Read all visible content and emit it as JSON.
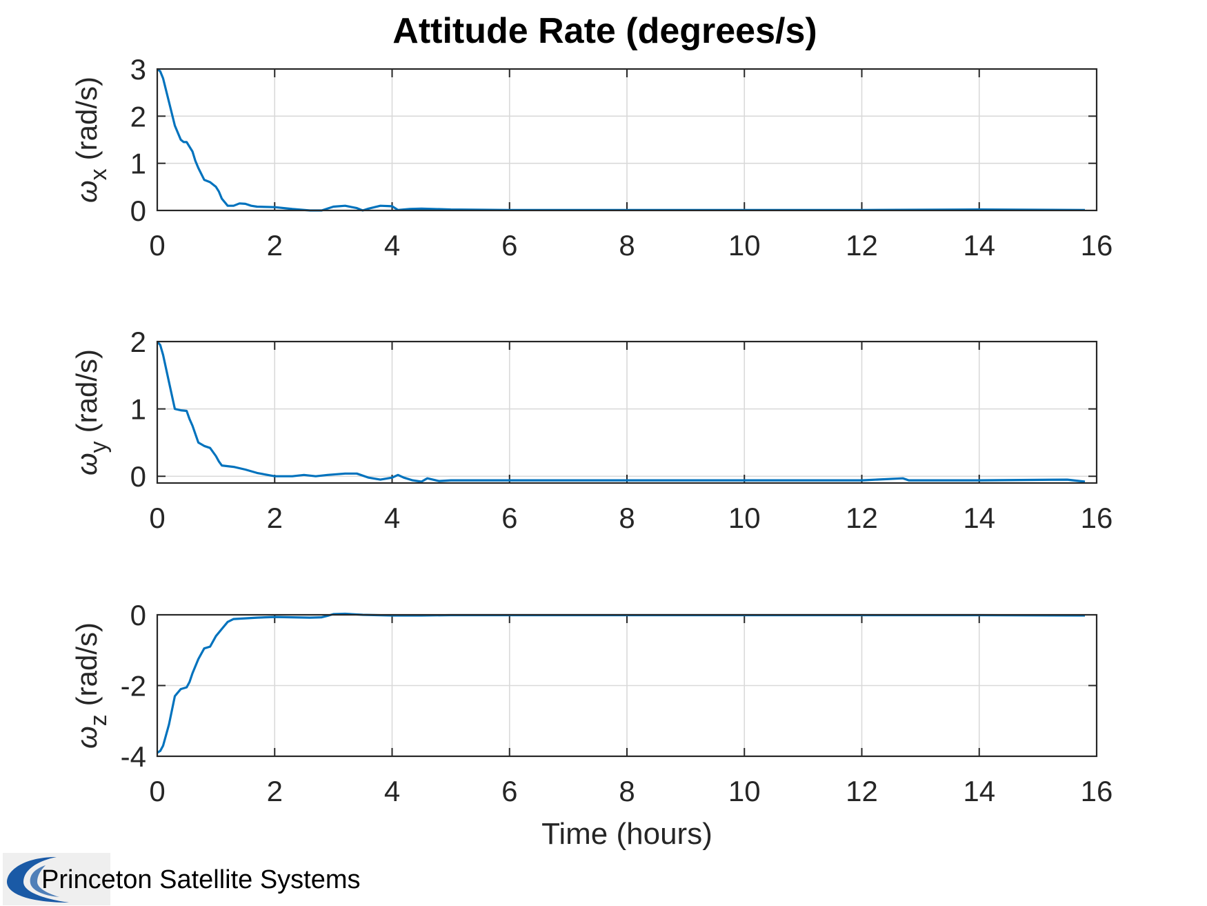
{
  "figure": {
    "title": "Attitude Rate (degrees/s)"
  },
  "colors": {
    "series": "#0072BD",
    "axes": "#262626",
    "grid": "#d9d9d9",
    "logo_blue": "#1a5aa6"
  },
  "chart_data": [
    {
      "type": "line",
      "ylabel_symbol": "ω",
      "ylabel_sub": "x",
      "ylabel_unit": "(rad/s)",
      "xlabel": "",
      "xlim": [
        0,
        16
      ],
      "ylim": [
        0,
        3
      ],
      "xticks": [
        0,
        2,
        4,
        6,
        8,
        10,
        12,
        14,
        16
      ],
      "yticks": [
        0,
        1,
        2,
        3
      ],
      "xtick_labels": [
        "0",
        "2",
        "4",
        "6",
        "8",
        "10",
        "12",
        "14",
        "16"
      ],
      "ytick_labels": [
        "0",
        "1",
        "2",
        "3"
      ],
      "grid": true,
      "series": [
        {
          "x": [
            0,
            0.05,
            0.1,
            0.2,
            0.3,
            0.4,
            0.45,
            0.5,
            0.6,
            0.65,
            0.7,
            0.8,
            0.9,
            1.0,
            1.05,
            1.1,
            1.2,
            1.3,
            1.4,
            1.5,
            1.6,
            1.7,
            2.0,
            2.3,
            2.6,
            2.8,
            3.0,
            3.2,
            3.4,
            3.5,
            3.6,
            3.8,
            4.0,
            4.1,
            4.3,
            4.5,
            5.0,
            6.0,
            8.0,
            10.0,
            12.0,
            14.0,
            15.8
          ],
          "y": [
            3.0,
            2.95,
            2.8,
            2.3,
            1.8,
            1.5,
            1.45,
            1.45,
            1.25,
            1.05,
            0.9,
            0.65,
            0.6,
            0.5,
            0.4,
            0.25,
            0.1,
            0.1,
            0.15,
            0.14,
            0.1,
            0.08,
            0.07,
            0.03,
            0.0,
            0.0,
            0.08,
            0.1,
            0.05,
            0.0,
            0.04,
            0.1,
            0.09,
            0.01,
            0.03,
            0.04,
            0.02,
            0.01,
            0.01,
            0.01,
            0.01,
            0.02,
            0.01
          ]
        }
      ]
    },
    {
      "type": "line",
      "ylabel_symbol": "ω",
      "ylabel_sub": "y",
      "ylabel_unit": "(rad/s)",
      "xlabel": "",
      "xlim": [
        0,
        16
      ],
      "ylim": [
        -0.1,
        2
      ],
      "xticks": [
        0,
        2,
        4,
        6,
        8,
        10,
        12,
        14,
        16
      ],
      "yticks": [
        0,
        1,
        2
      ],
      "xtick_labels": [
        "0",
        "2",
        "4",
        "6",
        "8",
        "10",
        "12",
        "14",
        "16"
      ],
      "ytick_labels": [
        "0",
        "1",
        "2"
      ],
      "grid": true,
      "series": [
        {
          "x": [
            0,
            0.05,
            0.1,
            0.2,
            0.3,
            0.4,
            0.5,
            0.55,
            0.6,
            0.7,
            0.8,
            0.9,
            1.0,
            1.05,
            1.1,
            1.2,
            1.3,
            1.5,
            1.7,
            2.0,
            2.3,
            2.5,
            2.7,
            2.9,
            3.2,
            3.4,
            3.6,
            3.8,
            4.0,
            4.1,
            4.2,
            4.35,
            4.5,
            4.6,
            4.8,
            5.0,
            6.0,
            7.0,
            8.0,
            9.0,
            10.0,
            11.0,
            12.0,
            12.7,
            12.8,
            14.0,
            15.5,
            15.8
          ],
          "y": [
            2.0,
            1.95,
            1.8,
            1.4,
            1.0,
            0.98,
            0.97,
            0.85,
            0.75,
            0.5,
            0.45,
            0.42,
            0.3,
            0.22,
            0.16,
            0.15,
            0.14,
            0.1,
            0.05,
            0.0,
            0.0,
            0.02,
            0.0,
            0.02,
            0.04,
            0.04,
            -0.02,
            -0.05,
            -0.02,
            0.02,
            -0.02,
            -0.06,
            -0.08,
            -0.03,
            -0.07,
            -0.06,
            -0.06,
            -0.06,
            -0.06,
            -0.06,
            -0.06,
            -0.06,
            -0.06,
            -0.03,
            -0.06,
            -0.06,
            -0.05,
            -0.08
          ]
        }
      ]
    },
    {
      "type": "line",
      "ylabel_symbol": "ω",
      "ylabel_sub": "z",
      "ylabel_unit": "(rad/s)",
      "xlabel": "Time (hours)",
      "xlim": [
        0,
        16
      ],
      "ylim": [
        -4,
        0
      ],
      "xticks": [
        0,
        2,
        4,
        6,
        8,
        10,
        12,
        14,
        16
      ],
      "yticks": [
        -4,
        -2,
        0
      ],
      "xtick_labels": [
        "0",
        "2",
        "4",
        "6",
        "8",
        "10",
        "12",
        "14",
        "16"
      ],
      "ytick_labels": [
        "-4",
        "-2",
        "0"
      ],
      "grid": true,
      "series": [
        {
          "x": [
            0,
            0.05,
            0.1,
            0.2,
            0.3,
            0.4,
            0.5,
            0.55,
            0.6,
            0.7,
            0.8,
            0.9,
            1.0,
            1.1,
            1.2,
            1.3,
            1.5,
            1.7,
            2.0,
            2.3,
            2.6,
            2.8,
            2.9,
            3.0,
            3.2,
            3.5,
            4.0,
            4.5,
            5.0,
            6.0,
            8.0,
            10.0,
            12.0,
            14.0,
            15.8
          ],
          "y": [
            -3.9,
            -3.85,
            -3.7,
            -3.1,
            -2.3,
            -2.1,
            -2.05,
            -1.9,
            -1.65,
            -1.25,
            -0.95,
            -0.9,
            -0.6,
            -0.4,
            -0.2,
            -0.12,
            -0.1,
            -0.08,
            -0.06,
            -0.07,
            -0.08,
            -0.07,
            -0.03,
            0.02,
            0.03,
            0.0,
            -0.02,
            -0.02,
            -0.01,
            -0.01,
            -0.01,
            -0.01,
            -0.01,
            -0.01,
            -0.02
          ]
        }
      ]
    }
  ],
  "logo": {
    "text": "Princeton Satellite Systems",
    "icon": "psslogo-icon"
  }
}
